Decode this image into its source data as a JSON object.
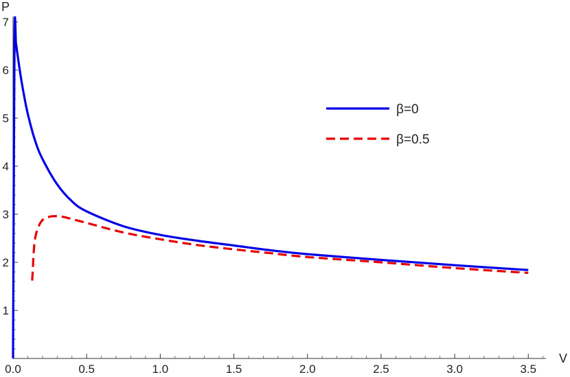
{
  "chart_data": {
    "type": "line",
    "xlabel": "V",
    "ylabel": "P",
    "xlim": [
      0,
      3.62
    ],
    "ylim": [
      0,
      7
    ],
    "x_ticks": [
      0.0,
      0.5,
      1.0,
      1.5,
      2.0,
      2.5,
      3.0,
      3.5
    ],
    "x_tick_labels": [
      "0.0",
      "0.5",
      "1.0",
      "1.5",
      "2.0",
      "2.5",
      "3.0",
      "3.5"
    ],
    "y_ticks": [
      1,
      2,
      3,
      4,
      5,
      6,
      7
    ],
    "y_tick_labels": [
      "1",
      "2",
      "3",
      "4",
      "5",
      "6",
      "7"
    ],
    "grid": false,
    "legend_position": "upper-right",
    "series": [
      {
        "name": "β=0",
        "style": "solid",
        "color": "#0000e6",
        "x": [
          0.0,
          0.01,
          0.02,
          0.03,
          0.05,
          0.07,
          0.1,
          0.15,
          0.2,
          0.3,
          0.4,
          0.5,
          0.75,
          1.0,
          1.25,
          1.5,
          1.75,
          2.0,
          2.5,
          3.0,
          3.5
        ],
        "y": [
          0.0,
          6.62,
          6.55,
          6.33,
          5.91,
          5.55,
          5.09,
          4.53,
          4.15,
          3.62,
          3.27,
          3.06,
          2.75,
          2.57,
          2.45,
          2.35,
          2.25,
          2.17,
          2.05,
          1.94,
          1.84
        ]
      },
      {
        "name": "β=0.5",
        "style": "dashed",
        "color": "#e60000",
        "x": [
          0.13,
          0.135,
          0.14,
          0.15,
          0.17,
          0.2,
          0.25,
          0.3,
          0.35,
          0.4,
          0.5,
          0.75,
          1.0,
          1.25,
          1.5,
          1.75,
          2.0,
          2.5,
          3.0,
          3.5
        ],
        "y": [
          1.62,
          1.9,
          2.2,
          2.5,
          2.72,
          2.88,
          2.95,
          2.96,
          2.94,
          2.9,
          2.82,
          2.62,
          2.48,
          2.36,
          2.27,
          2.19,
          2.11,
          2.0,
          1.88,
          1.78
        ]
      }
    ]
  }
}
